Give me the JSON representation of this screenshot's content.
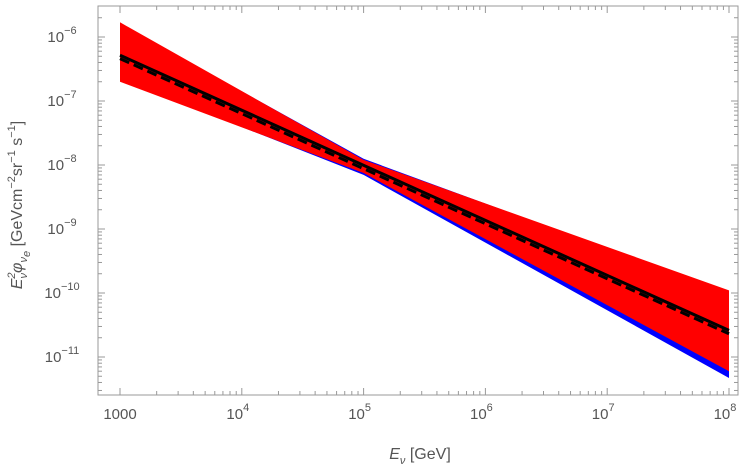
{
  "chart_data": {
    "type": "area",
    "x_scale": "log",
    "y_scale": "log",
    "xlim": [
      1000,
      100000000
    ],
    "ylim": [
      2.3e-12,
      2e-06
    ],
    "grid": false,
    "xlabel": "E_ν [GeV]",
    "ylabel": "E_ν² φ_νe [GeV cm⁻² sr⁻¹ s⁻¹]",
    "x_ticks": [
      {
        "value": 1000,
        "base": "1000",
        "exp": ""
      },
      {
        "value": 10000,
        "base": "10",
        "exp": "4"
      },
      {
        "value": 100000,
        "base": "10",
        "exp": "5"
      },
      {
        "value": 1000000,
        "base": "10",
        "exp": "6"
      },
      {
        "value": 10000000,
        "base": "10",
        "exp": "7"
      },
      {
        "value": 100000000,
        "base": "10",
        "exp": "8"
      }
    ],
    "y_ticks": [
      {
        "value": 1e-11,
        "base": "10",
        "exp": "−11"
      },
      {
        "value": 1e-10,
        "base": "10",
        "exp": "−10"
      },
      {
        "value": 1e-09,
        "base": "10",
        "exp": "−9"
      },
      {
        "value": 1e-08,
        "base": "10",
        "exp": "−8"
      },
      {
        "value": 1e-07,
        "base": "10",
        "exp": "−7"
      },
      {
        "value": 1e-06,
        "base": "10",
        "exp": "−6"
      }
    ],
    "bands": [
      {
        "color": "#0000ff",
        "x": [
          1000,
          100000,
          100000000
        ],
        "upper": [
          1.6e-06,
          1.25e-08,
          1e-10
        ],
        "lower": [
          2.2e-07,
          7e-09,
          4.7e-12
        ]
      },
      {
        "color": "#ff0000",
        "x": [
          1000,
          100000,
          100000000
        ],
        "upper": [
          1.7e-06,
          1.2e-08,
          1.1e-10
        ],
        "lower": [
          2e-07,
          7.5e-09,
          6e-12
        ]
      }
    ],
    "series": [
      {
        "style": "solid",
        "color": "#000000",
        "x": [
          1000,
          100000000
        ],
        "values": [
          5.2e-07,
          2.6e-11
        ]
      },
      {
        "style": "dashed",
        "color": "#000000",
        "x": [
          1000,
          100000000
        ],
        "values": [
          4.6e-07,
          2.3e-11
        ]
      }
    ]
  }
}
